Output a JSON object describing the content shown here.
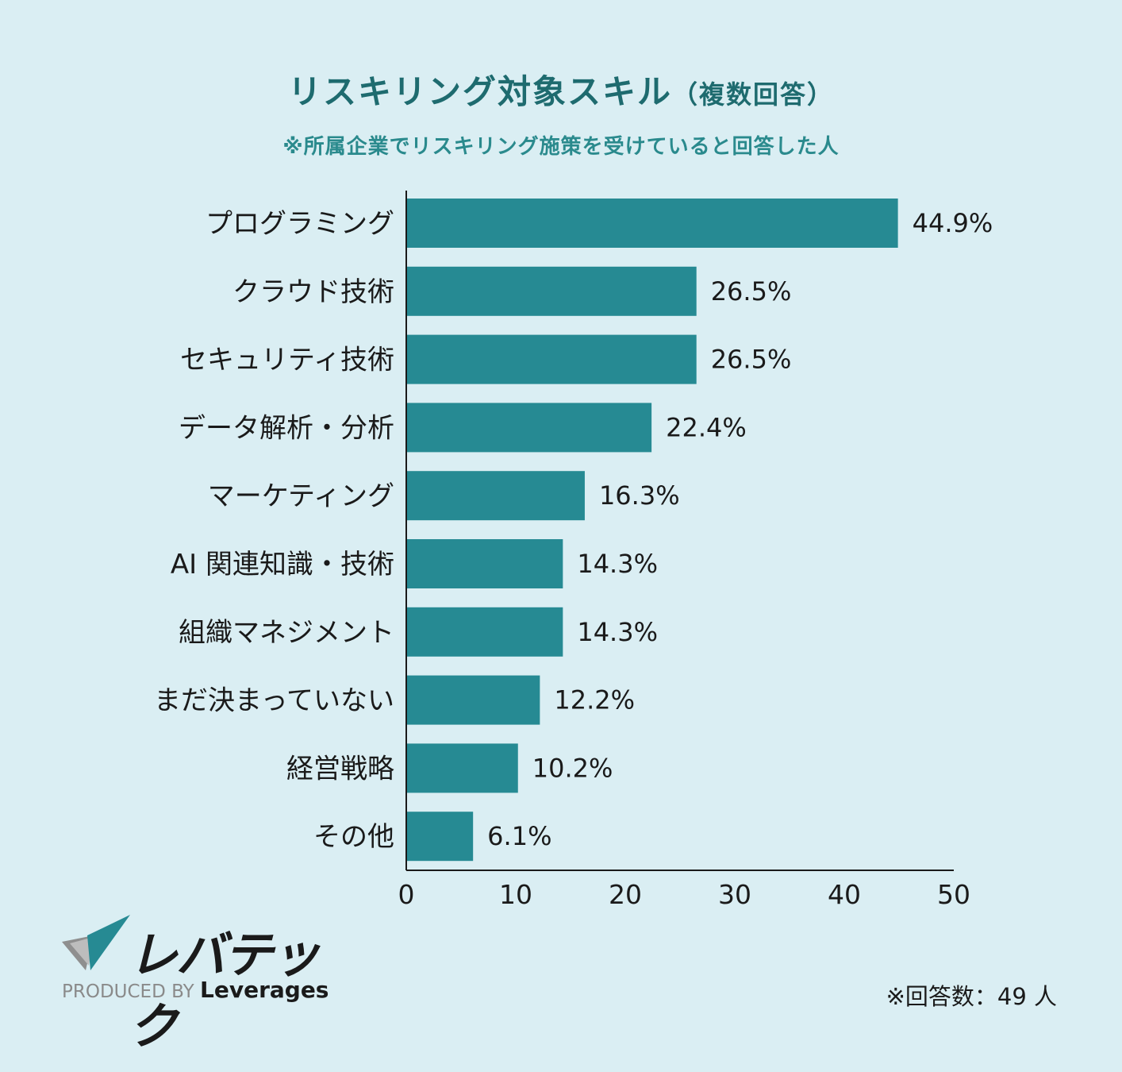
{
  "title_main": "リスキリング対象スキル",
  "title_paren": "（複数回答）",
  "subtitle": "※所属企業でリスキリング施策を受けていると回答した人",
  "brand": {
    "logo_text": "レバテック",
    "produced_by": "PRODUCED BY",
    "company": "Leverages"
  },
  "note": "※回答数：49 人",
  "colors": {
    "bar": "#268a93",
    "background": "#daeef3",
    "title": "#1e6b6f"
  },
  "chart_data": {
    "type": "bar",
    "orientation": "horizontal",
    "categories": [
      "プログラミング",
      "クラウド技術",
      "セキュリティ技術",
      "データ解析・分析",
      "マーケティング",
      "AI 関連知識・技術",
      "組織マネジメント",
      "まだ決まっていない",
      "経営戦略",
      "その他"
    ],
    "values": [
      44.9,
      26.5,
      26.5,
      22.4,
      16.3,
      14.3,
      14.3,
      12.2,
      10.2,
      6.1
    ],
    "value_labels": [
      "44.9%",
      "26.5%",
      "26.5%",
      "22.4%",
      "16.3%",
      "14.3%",
      "14.3%",
      "12.2%",
      "10.2%",
      "6.1%"
    ],
    "xlim": [
      0,
      50
    ],
    "xticks": [
      0,
      10,
      20,
      30,
      40,
      50
    ],
    "grid": false,
    "legend": false
  }
}
